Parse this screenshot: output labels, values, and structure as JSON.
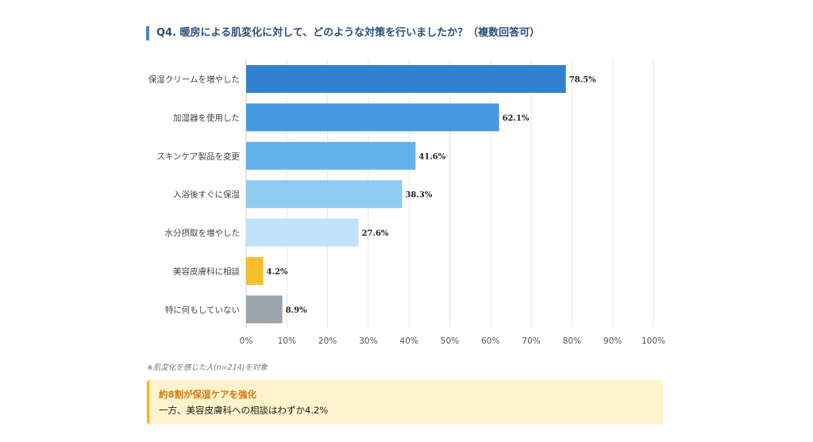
{
  "title": "Q4. 暖房による肌変化に対して、どのような対策を行いましたか？（複数回答可）",
  "note": "※肌変化を感じた人(n=214)を対象",
  "callout": {
    "heading": "約8割が保湿ケアを強化",
    "body": "一方、美容皮膚科への相談はわずか4.2%"
  },
  "chart_data": {
    "type": "bar",
    "orientation": "horizontal",
    "categories": [
      "保湿クリームを増やした",
      "加湿器を使用した",
      "スキンケア製品を変更",
      "入浴後すぐに保湿",
      "水分摂取を増やした",
      "美容皮膚科に相談",
      "特に何もしていない"
    ],
    "values": [
      78.5,
      62.1,
      41.6,
      38.3,
      27.6,
      4.2,
      8.9
    ],
    "value_labels": [
      "78.5%",
      "62.1%",
      "41.6%",
      "38.3%",
      "27.6%",
      "4.2%",
      "8.9%"
    ],
    "colors": [
      "#2f82cd",
      "#4599e1",
      "#63b1ea",
      "#8fcbf1",
      "#bfe3f8",
      "#f7bf2e",
      "#9ca4ae"
    ],
    "xlim": [
      0,
      100
    ],
    "xticks": [
      "0%",
      "10%",
      "20%",
      "30%",
      "40%",
      "50%",
      "60%",
      "70%",
      "80%",
      "90%",
      "100%"
    ],
    "grid": true
  }
}
